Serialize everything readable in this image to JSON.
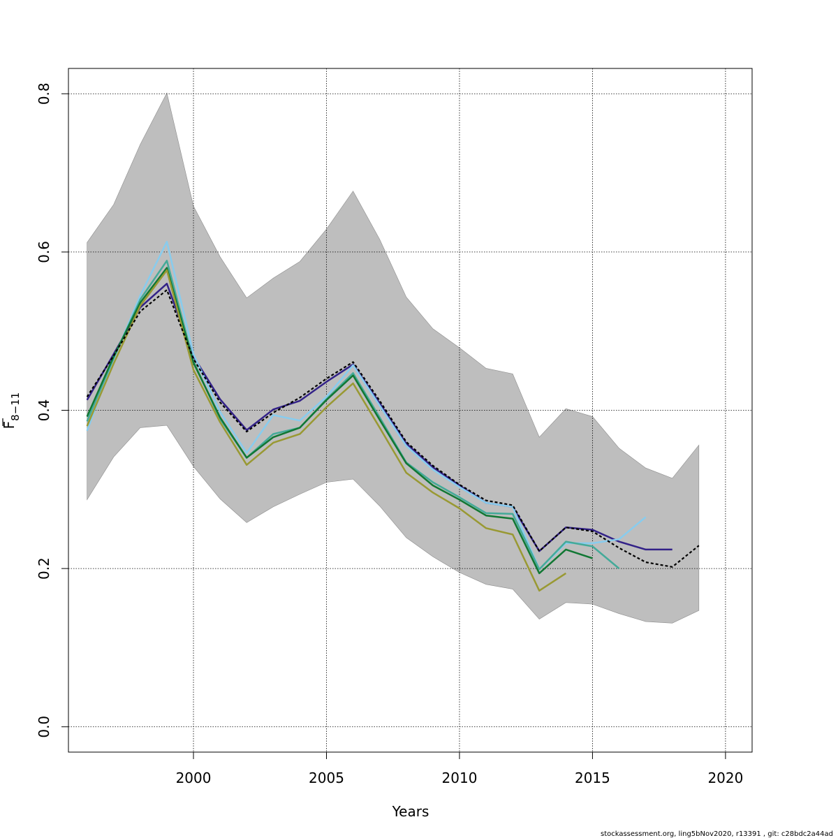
{
  "chart_data": {
    "type": "line",
    "title": "",
    "xlabel": "Years",
    "ylabel": "F̅8−11",
    "ylabel_main": "F",
    "ylabel_sub": "8−11",
    "xlim": [
      1995.3,
      2021.0
    ],
    "ylim": [
      -0.032,
      0.832
    ],
    "x_ticks": [
      2000,
      2005,
      2010,
      2015,
      2020
    ],
    "y_ticks": [
      0.0,
      0.2,
      0.4,
      0.6,
      0.8
    ],
    "y_tick_labels": [
      "0.0",
      "0.2",
      "0.4",
      "0.6",
      "0.8"
    ],
    "grid": true,
    "legend": "none",
    "confidence_band": {
      "x": [
        1996,
        1997,
        1998,
        1999,
        2000,
        2001,
        2002,
        2003,
        2004,
        2005,
        2006,
        2007,
        2008,
        2009,
        2010,
        2011,
        2012,
        2013,
        2014,
        2015,
        2016,
        2017,
        2018,
        2019
      ],
      "lower": [
        0.287,
        0.341,
        0.378,
        0.381,
        0.329,
        0.288,
        0.258,
        0.278,
        0.294,
        0.309,
        0.313,
        0.279,
        0.239,
        0.215,
        0.195,
        0.18,
        0.174,
        0.136,
        0.157,
        0.155,
        0.143,
        0.133,
        0.131,
        0.147
      ],
      "upper": [
        0.612,
        0.66,
        0.736,
        0.801,
        0.658,
        0.594,
        0.542,
        0.567,
        0.588,
        0.629,
        0.677,
        0.616,
        0.543,
        0.503,
        0.479,
        0.453,
        0.446,
        0.366,
        0.402,
        0.392,
        0.352,
        0.327,
        0.314,
        0.356
      ],
      "color": "#bebebe"
    },
    "series": [
      {
        "color": "#000000",
        "style": "dashed",
        "x": [
          1996,
          1997,
          1998,
          1999,
          2000,
          2001,
          2002,
          2003,
          2004,
          2005,
          2006,
          2007,
          2008,
          2009,
          2010,
          2011,
          2012,
          2013,
          2014,
          2015,
          2016,
          2017,
          2018,
          2019
        ],
        "values": [
          0.417,
          0.469,
          0.525,
          0.552,
          0.465,
          0.41,
          0.373,
          0.397,
          0.416,
          0.44,
          0.461,
          0.412,
          0.36,
          0.33,
          0.306,
          0.286,
          0.28,
          0.222,
          0.252,
          0.247,
          0.226,
          0.208,
          0.202,
          0.229
        ]
      },
      {
        "color": "#332288",
        "style": "solid",
        "x": [
          1996,
          1997,
          1998,
          1999,
          2000,
          2001,
          2002,
          2003,
          2004,
          2005,
          2006,
          2007,
          2008,
          2009,
          2010,
          2011,
          2012,
          2013,
          2014,
          2015,
          2016,
          2017,
          2018
        ],
        "values": [
          0.413,
          0.471,
          0.53,
          0.56,
          0.468,
          0.414,
          0.375,
          0.401,
          0.412,
          0.436,
          0.458,
          0.409,
          0.358,
          0.328,
          0.305,
          0.283,
          0.278,
          0.222,
          0.252,
          0.249,
          0.234,
          0.224,
          0.224
        ]
      },
      {
        "color": "#88ccee",
        "style": "solid",
        "x": [
          1996,
          1997,
          1998,
          1999,
          2000,
          2001,
          2002,
          2003,
          2004,
          2005,
          2006,
          2007,
          2008,
          2009,
          2010,
          2011,
          2012,
          2013,
          2014,
          2015,
          2016,
          2017
        ],
        "values": [
          0.374,
          0.465,
          0.545,
          0.613,
          0.471,
          0.398,
          0.346,
          0.394,
          0.387,
          0.417,
          0.457,
          0.406,
          0.355,
          0.325,
          0.303,
          0.283,
          0.278,
          0.199,
          0.232,
          0.232,
          0.237,
          0.265
        ]
      },
      {
        "color": "#44aa99",
        "style": "solid",
        "x": [
          1996,
          1997,
          1998,
          1999,
          2000,
          2001,
          2002,
          2003,
          2004,
          2005,
          2006,
          2007,
          2008,
          2009,
          2010,
          2011,
          2012,
          2013,
          2014,
          2015,
          2016
        ],
        "values": [
          0.386,
          0.466,
          0.54,
          0.589,
          0.462,
          0.389,
          0.34,
          0.37,
          0.378,
          0.414,
          0.447,
          0.391,
          0.334,
          0.309,
          0.29,
          0.27,
          0.269,
          0.199,
          0.234,
          0.228,
          0.2
        ]
      },
      {
        "color": "#117733",
        "style": "solid",
        "x": [
          1996,
          1997,
          1998,
          1999,
          2000,
          2001,
          2002,
          2003,
          2004,
          2005,
          2006,
          2007,
          2008,
          2009,
          2010,
          2011,
          2012,
          2013,
          2014,
          2015
        ],
        "values": [
          0.392,
          0.468,
          0.536,
          0.58,
          0.46,
          0.391,
          0.34,
          0.366,
          0.378,
          0.413,
          0.444,
          0.388,
          0.333,
          0.305,
          0.287,
          0.267,
          0.263,
          0.194,
          0.224,
          0.213
        ]
      },
      {
        "color": "#999933",
        "style": "solid",
        "x": [
          1996,
          1997,
          1998,
          1999,
          2000,
          2001,
          2002,
          2003,
          2004,
          2005,
          2006,
          2007,
          2008,
          2009,
          2010,
          2011,
          2012,
          2013,
          2014
        ],
        "values": [
          0.38,
          0.459,
          0.532,
          0.577,
          0.451,
          0.385,
          0.331,
          0.359,
          0.37,
          0.404,
          0.434,
          0.378,
          0.321,
          0.296,
          0.276,
          0.251,
          0.243,
          0.172,
          0.194
        ]
      }
    ],
    "footer": "stockassessment.org, ling5bNov2020, r13391 , git: c28bdc2a44ad"
  }
}
